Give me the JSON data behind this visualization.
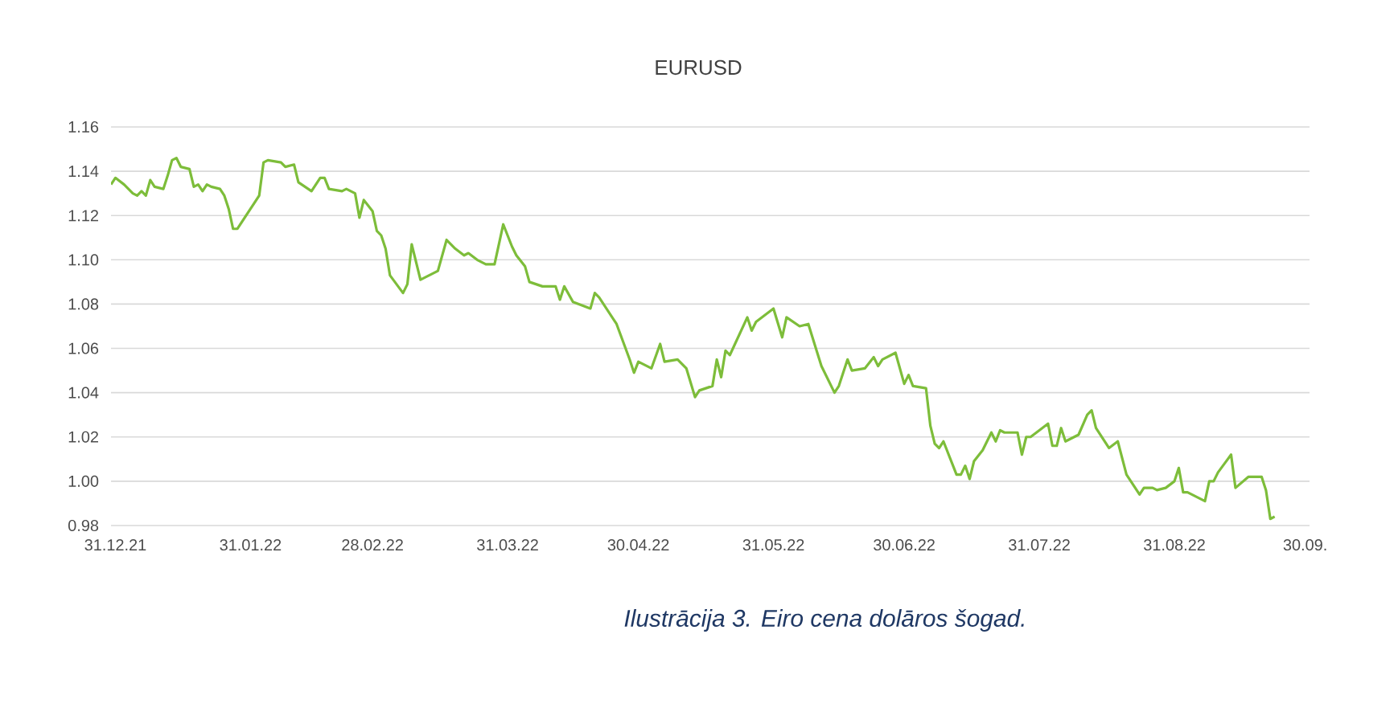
{
  "chart_data": {
    "type": "line",
    "title": "EURUSD",
    "annotations": [
      "*Ilustrācija 3. Eiro cena dolāros šogad.*"
    ],
    "x": [
      "2021-12-30",
      "2021-12-31",
      "2022-01-02",
      "2022-01-04",
      "2022-01-05",
      "2022-01-06",
      "2022-01-07",
      "2022-01-08",
      "2022-01-09",
      "2022-01-11",
      "2022-01-12",
      "2022-01-13",
      "2022-01-14",
      "2022-01-15",
      "2022-01-17",
      "2022-01-18",
      "2022-01-19",
      "2022-01-20",
      "2022-01-21",
      "2022-01-22",
      "2022-01-24",
      "2022-01-25",
      "2022-01-26",
      "2022-01-27",
      "2022-01-28",
      "2022-01-31",
      "2022-02-02",
      "2022-02-03",
      "2022-02-04",
      "2022-02-07",
      "2022-02-08",
      "2022-02-10",
      "2022-02-11",
      "2022-02-14",
      "2022-02-16",
      "2022-02-17",
      "2022-02-18",
      "2022-02-21",
      "2022-02-22",
      "2022-02-24",
      "2022-02-25",
      "2022-02-26",
      "2022-02-28",
      "2022-03-01",
      "2022-03-02",
      "2022-03-03",
      "2022-03-04",
      "2022-03-07",
      "2022-03-08",
      "2022-03-09",
      "2022-03-11",
      "2022-03-15",
      "2022-03-17",
      "2022-03-19",
      "2022-03-21",
      "2022-03-22",
      "2022-03-24",
      "2022-03-26",
      "2022-03-28",
      "2022-03-30",
      "2022-04-01",
      "2022-04-02",
      "2022-04-04",
      "2022-04-05",
      "2022-04-08",
      "2022-04-11",
      "2022-04-12",
      "2022-04-13",
      "2022-04-15",
      "2022-04-19",
      "2022-04-20",
      "2022-04-21",
      "2022-04-23",
      "2022-04-25",
      "2022-04-28",
      "2022-04-29",
      "2022-04-30",
      "2022-05-03",
      "2022-05-05",
      "2022-05-06",
      "2022-05-09",
      "2022-05-11",
      "2022-05-13",
      "2022-05-14",
      "2022-05-17",
      "2022-05-18",
      "2022-05-19",
      "2022-05-20",
      "2022-05-21",
      "2022-05-25",
      "2022-05-26",
      "2022-05-27",
      "2022-05-31",
      "2022-06-02",
      "2022-06-03",
      "2022-06-06",
      "2022-06-08",
      "2022-06-11",
      "2022-06-14",
      "2022-06-15",
      "2022-06-17",
      "2022-06-18",
      "2022-06-21",
      "2022-06-23",
      "2022-06-24",
      "2022-06-25",
      "2022-06-28",
      "2022-06-30",
      "2022-07-01",
      "2022-07-02",
      "2022-07-05",
      "2022-07-06",
      "2022-07-07",
      "2022-07-08",
      "2022-07-09",
      "2022-07-12",
      "2022-07-13",
      "2022-07-14",
      "2022-07-15",
      "2022-07-16",
      "2022-07-18",
      "2022-07-20",
      "2022-07-21",
      "2022-07-22",
      "2022-07-23",
      "2022-07-26",
      "2022-07-27",
      "2022-07-28",
      "2022-07-29",
      "2022-08-02",
      "2022-08-03",
      "2022-08-04",
      "2022-08-05",
      "2022-08-06",
      "2022-08-09",
      "2022-08-11",
      "2022-08-12",
      "2022-08-13",
      "2022-08-16",
      "2022-08-18",
      "2022-08-20",
      "2022-08-23",
      "2022-08-24",
      "2022-08-26",
      "2022-08-27",
      "2022-08-29",
      "2022-08-31",
      "2022-09-01",
      "2022-09-02",
      "2022-09-03",
      "2022-09-06",
      "2022-09-07",
      "2022-09-08",
      "2022-09-09",
      "2022-09-10",
      "2022-09-13",
      "2022-09-14",
      "2022-09-17",
      "2022-09-20",
      "2022-09-21",
      "2022-09-22",
      "2022-09-23"
    ],
    "series": [
      {
        "color": "#7dbd3a",
        "values": [
          1.134,
          1.137,
          1.134,
          1.13,
          1.129,
          1.131,
          1.129,
          1.136,
          1.133,
          1.132,
          1.138,
          1.145,
          1.146,
          1.142,
          1.141,
          1.133,
          1.134,
          1.131,
          1.134,
          1.133,
          1.132,
          1.129,
          1.123,
          1.114,
          1.114,
          1.123,
          1.129,
          1.144,
          1.145,
          1.144,
          1.142,
          1.143,
          1.135,
          1.131,
          1.137,
          1.137,
          1.132,
          1.131,
          1.132,
          1.13,
          1.119,
          1.127,
          1.122,
          1.113,
          1.111,
          1.105,
          1.093,
          1.085,
          1.089,
          1.107,
          1.091,
          1.095,
          1.109,
          1.105,
          1.102,
          1.103,
          1.1,
          1.098,
          1.098,
          1.116,
          1.106,
          1.102,
          1.097,
          1.09,
          1.088,
          1.088,
          1.082,
          1.088,
          1.081,
          1.078,
          1.085,
          1.083,
          1.077,
          1.071,
          1.055,
          1.049,
          1.054,
          1.051,
          1.062,
          1.054,
          1.055,
          1.051,
          1.038,
          1.041,
          1.043,
          1.055,
          1.047,
          1.059,
          1.057,
          1.074,
          1.068,
          1.072,
          1.078,
          1.065,
          1.074,
          1.07,
          1.071,
          1.052,
          1.04,
          1.043,
          1.055,
          1.05,
          1.051,
          1.056,
          1.052,
          1.055,
          1.058,
          1.044,
          1.048,
          1.043,
          1.042,
          1.025,
          1.017,
          1.015,
          1.018,
          1.003,
          1.003,
          1.007,
          1.001,
          1.009,
          1.014,
          1.022,
          1.018,
          1.023,
          1.022,
          1.022,
          1.012,
          1.02,
          1.02,
          1.026,
          1.016,
          1.016,
          1.024,
          1.018,
          1.021,
          1.03,
          1.032,
          1.024,
          1.015,
          1.018,
          1.003,
          0.994,
          0.997,
          0.997,
          0.996,
          0.997,
          1.0,
          1.006,
          0.995,
          0.995,
          0.992,
          0.991,
          1.0,
          1.0,
          1.004,
          1.012,
          0.997,
          1.002,
          1.002,
          0.996,
          0.983,
          0.984
        ]
      }
    ],
    "xlim": [
      "2021-12-30",
      "2022-10-01"
    ],
    "xticks": [
      {
        "value": "2021-12-31",
        "label": "31.12.21"
      },
      {
        "value": "2022-01-31",
        "label": "31.01.22"
      },
      {
        "value": "2022-02-28",
        "label": "28.02.22"
      },
      {
        "value": "2022-03-31",
        "label": "31.03.22"
      },
      {
        "value": "2022-04-30",
        "label": "30.04.22"
      },
      {
        "value": "2022-05-31",
        "label": "31.05.22"
      },
      {
        "value": "2022-06-30",
        "label": "30.06.22"
      },
      {
        "value": "2022-07-31",
        "label": "31.07.22"
      },
      {
        "value": "2022-08-31",
        "label": "31.08.22"
      },
      {
        "value": "2022-09-30",
        "label": "30.09."
      }
    ],
    "ylim": [
      0.98,
      1.16
    ],
    "yticks": [
      0.98,
      {
        "value": 1.0,
        "label": "1.00"
      },
      1.02,
      1.04,
      1.06,
      1.08,
      {
        "value": 1.1,
        "label": "1.10"
      },
      1.12,
      1.14,
      1.16
    ],
    "grid": "y",
    "legend": false,
    "marker": "none",
    "line_style": "solid"
  }
}
